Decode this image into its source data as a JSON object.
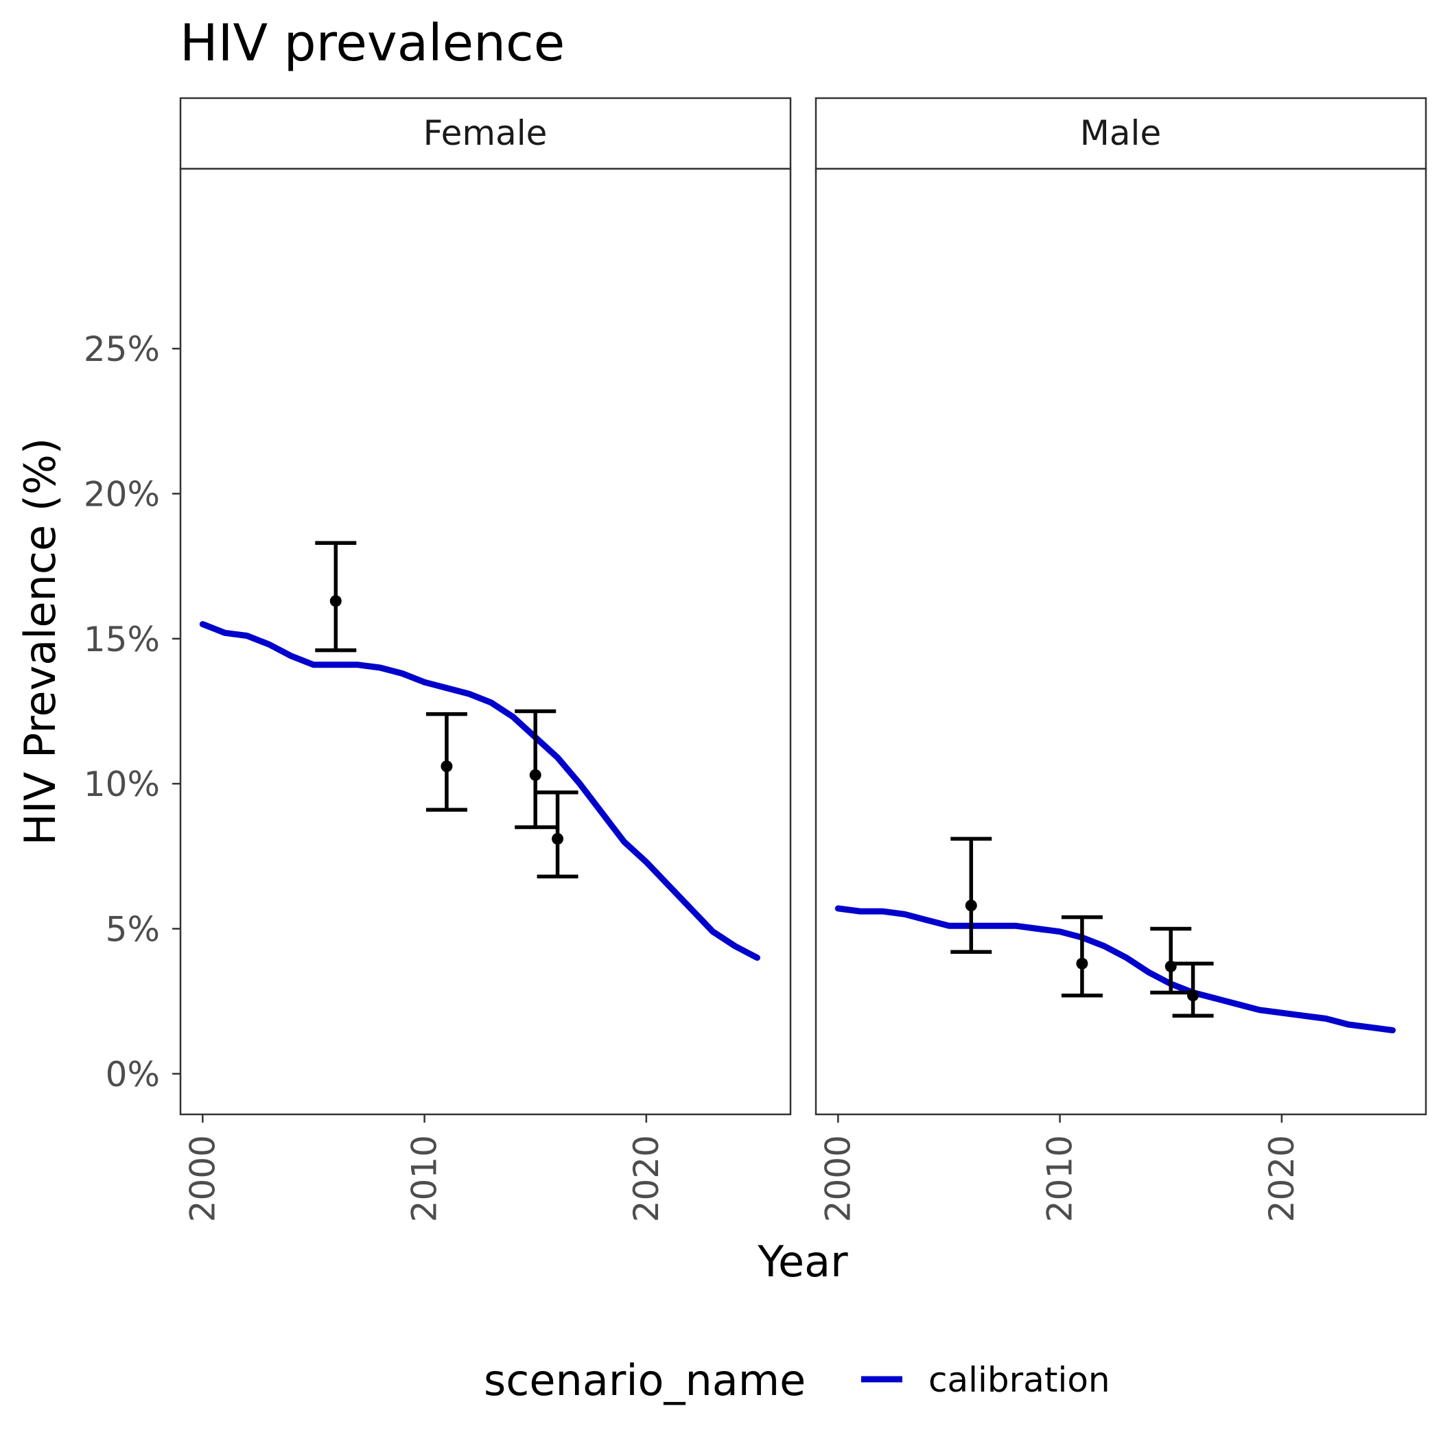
{
  "chart_data": {
    "type": "line",
    "title": "HIV prevalence",
    "xlabel": "Year",
    "ylabel": "HIV Prevalence (%)",
    "xlim": [
      1999,
      2026.5
    ],
    "ylim": [
      -1.4,
      31.2
    ],
    "x_ticks": [
      2000,
      2010,
      2020
    ],
    "y_ticks": [
      0,
      5,
      10,
      15,
      20,
      25
    ],
    "y_tick_labels": [
      "0%",
      "5%",
      "10%",
      "15%",
      "20%",
      "25%"
    ],
    "facets": [
      "Female",
      "Male"
    ],
    "colors": {
      "series": "#0000cc",
      "uncertainty": "#4d4dff",
      "points": "#000000"
    },
    "legend": {
      "title": "scenario_name",
      "position": "bottom",
      "entries": [
        "calibration"
      ]
    },
    "series": [
      {
        "name": "calibration",
        "facet": "Female",
        "x": [
          2000,
          2001,
          2002,
          2003,
          2004,
          2005,
          2006,
          2007,
          2008,
          2009,
          2010,
          2011,
          2012,
          2013,
          2014,
          2015,
          2016,
          2017,
          2018,
          2019,
          2020,
          2021,
          2022,
          2023,
          2024,
          2025
        ],
        "y": [
          15.5,
          15.2,
          15.1,
          14.8,
          14.4,
          14.1,
          14.1,
          14.1,
          14.0,
          13.8,
          13.5,
          13.3,
          13.1,
          12.8,
          12.3,
          11.6,
          10.9,
          10.0,
          9.0,
          8.0,
          7.3,
          6.5,
          5.7,
          4.9,
          4.4,
          4.0
        ]
      },
      {
        "name": "calibration",
        "facet": "Male",
        "x": [
          2000,
          2001,
          2002,
          2003,
          2004,
          2005,
          2006,
          2007,
          2008,
          2009,
          2010,
          2011,
          2012,
          2013,
          2014,
          2015,
          2016,
          2017,
          2018,
          2019,
          2020,
          2021,
          2022,
          2023,
          2024,
          2025
        ],
        "y": [
          5.7,
          5.6,
          5.6,
          5.5,
          5.3,
          5.1,
          5.1,
          5.1,
          5.1,
          5.0,
          4.9,
          4.7,
          4.4,
          4.0,
          3.5,
          3.1,
          2.8,
          2.6,
          2.4,
          2.2,
          2.1,
          2.0,
          1.9,
          1.7,
          1.6,
          1.5
        ]
      }
    ],
    "observations": [
      {
        "facet": "Female",
        "x": 2006,
        "y": 16.3,
        "lower": 14.6,
        "upper": 18.3
      },
      {
        "facet": "Female",
        "x": 2011,
        "y": 10.6,
        "lower": 9.1,
        "upper": 12.4
      },
      {
        "facet": "Female",
        "x": 2015,
        "y": 10.3,
        "lower": 8.5,
        "upper": 12.5
      },
      {
        "facet": "Female",
        "x": 2016,
        "y": 8.1,
        "lower": 6.8,
        "upper": 9.7
      },
      {
        "facet": "Male",
        "x": 2006,
        "y": 5.8,
        "lower": 4.2,
        "upper": 8.1
      },
      {
        "facet": "Male",
        "x": 2011,
        "y": 3.8,
        "lower": 2.7,
        "upper": 5.4
      },
      {
        "facet": "Male",
        "x": 2015,
        "y": 3.7,
        "lower": 2.8,
        "upper": 5.0
      },
      {
        "facet": "Male",
        "x": 2016,
        "y": 2.7,
        "lower": 2.0,
        "upper": 3.8
      }
    ]
  }
}
